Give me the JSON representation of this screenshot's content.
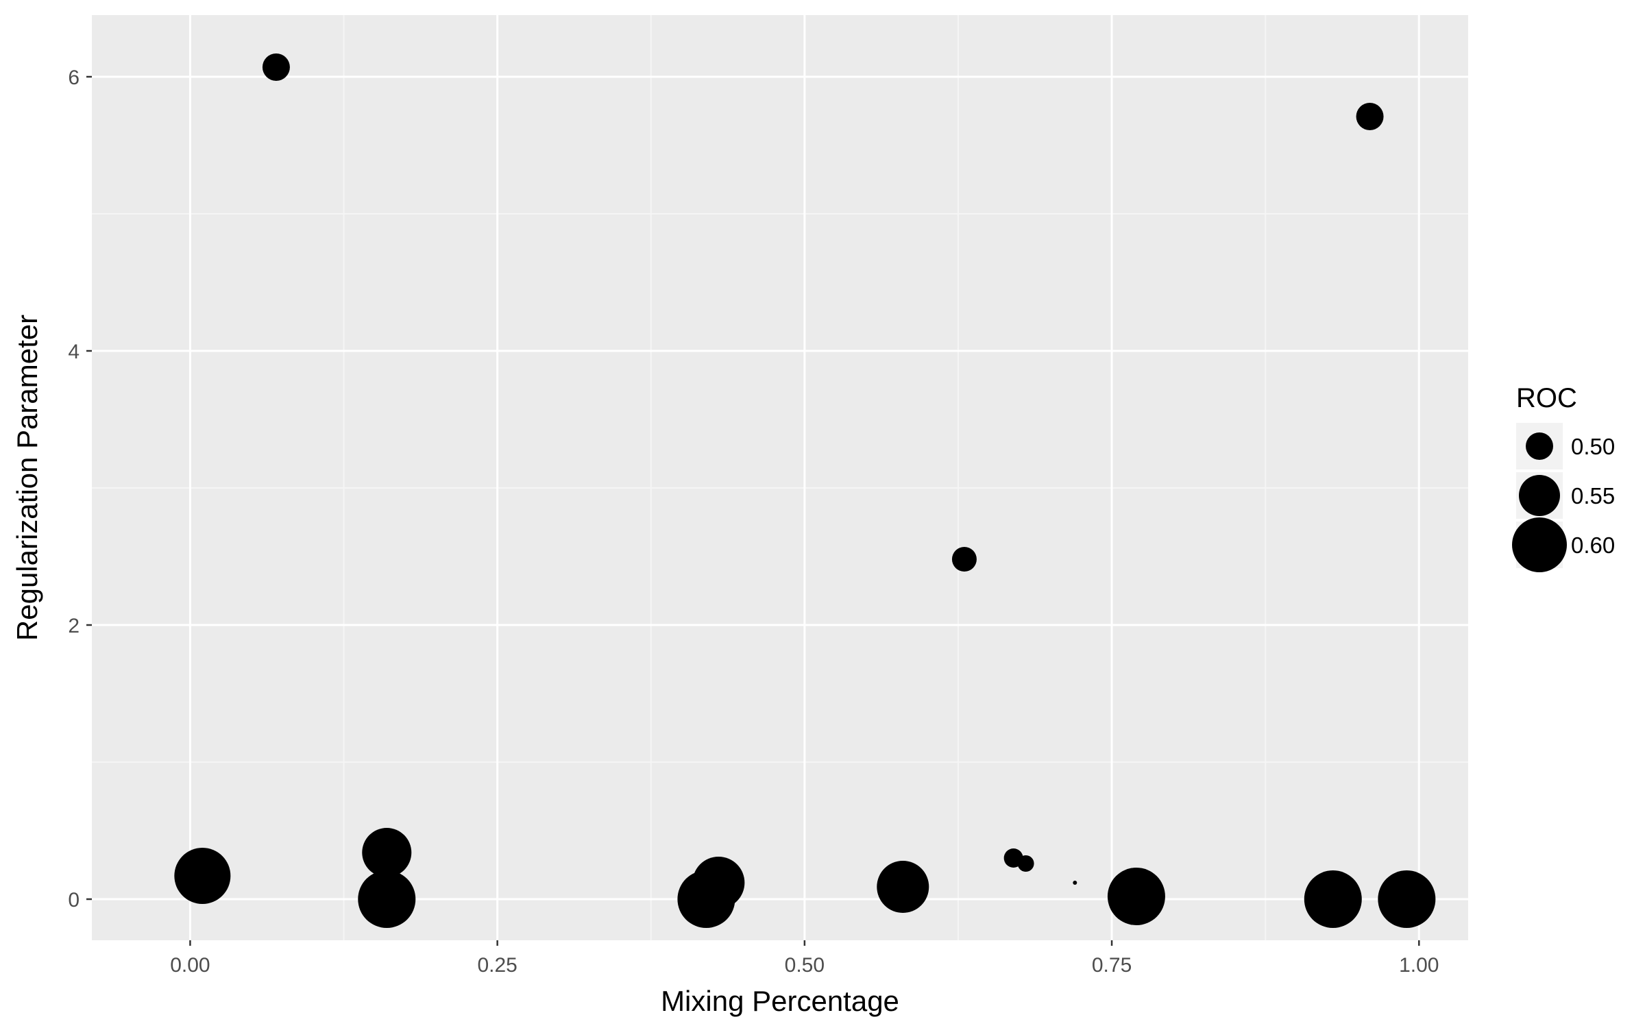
{
  "chart_data": {
    "type": "scatter",
    "title": "",
    "xlabel": "Mixing Percentage",
    "ylabel": "Regularization Parameter",
    "xlim": [
      -0.08,
      1.04
    ],
    "ylim": [
      -0.3,
      6.45
    ],
    "x_ticks": [
      0.0,
      0.25,
      0.5,
      0.75,
      1.0
    ],
    "x_tick_labels": [
      "0.00",
      "0.25",
      "0.50",
      "0.75",
      "1.00"
    ],
    "y_ticks": [
      0,
      2,
      4,
      6
    ],
    "y_tick_labels": [
      "0",
      "2",
      "4",
      "6"
    ],
    "grid": true,
    "size_variable": "ROC",
    "legend": {
      "title": "ROC",
      "position": "right",
      "entries": [
        {
          "label": "0.50",
          "value": 0.5
        },
        {
          "label": "0.55",
          "value": 0.55
        },
        {
          "label": "0.60",
          "value": 0.6
        }
      ]
    },
    "points": [
      {
        "x": 0.07,
        "y": 6.07,
        "roc": 0.5
      },
      {
        "x": 0.96,
        "y": 5.71,
        "roc": 0.5
      },
      {
        "x": 0.63,
        "y": 2.48,
        "roc": 0.49
      },
      {
        "x": 0.01,
        "y": 0.17,
        "roc": 0.605
      },
      {
        "x": 0.16,
        "y": 0.34,
        "roc": 0.58
      },
      {
        "x": 0.16,
        "y": 0.0,
        "roc": 0.61
      },
      {
        "x": 0.42,
        "y": 0.0,
        "roc": 0.61
      },
      {
        "x": 0.43,
        "y": 0.12,
        "roc": 0.59
      },
      {
        "x": 0.58,
        "y": 0.09,
        "roc": 0.59
      },
      {
        "x": 0.67,
        "y": 0.3,
        "roc": 0.47
      },
      {
        "x": 0.68,
        "y": 0.26,
        "roc": 0.46
      },
      {
        "x": 0.72,
        "y": 0.12,
        "roc": 0.36
      },
      {
        "x": 0.77,
        "y": 0.02,
        "roc": 0.61
      },
      {
        "x": 0.93,
        "y": 0.0,
        "roc": 0.61
      },
      {
        "x": 0.99,
        "y": 0.0,
        "roc": 0.61
      }
    ],
    "colors": {
      "panel_background": "#ebebeb",
      "grid_major": "#ffffff",
      "grid_minor": "#f5f5f5",
      "point": "#000000",
      "tick_text": "#4d4d4d"
    }
  }
}
